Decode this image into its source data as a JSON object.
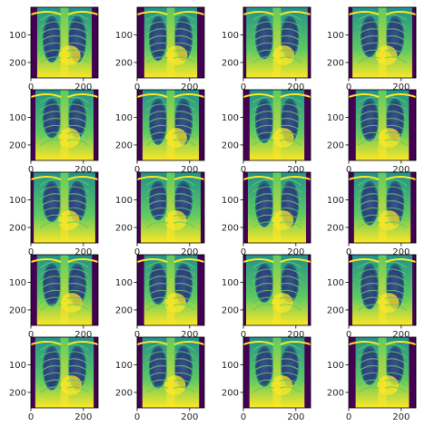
{
  "figure": {
    "grid_rows": 5,
    "grid_cols": 4,
    "background": "#ffffff",
    "colormap": [
      "#440154",
      "#3b528b",
      "#21918c",
      "#5ec962",
      "#fde725"
    ]
  },
  "chart_data": {
    "type": "heatmap",
    "description_source": "grid of 20 grayscale chest X-ray images rendered with viridis colormap",
    "image_size": [
      256,
      256
    ],
    "xlim": [
      0,
      256
    ],
    "ylim": [
      256,
      0
    ],
    "x_ticks": [
      "0",
      "200"
    ],
    "y_ticks": [
      "100",
      "200"
    ],
    "panels": [
      {
        "row": 0,
        "col": 0
      },
      {
        "row": 0,
        "col": 1
      },
      {
        "row": 0,
        "col": 2
      },
      {
        "row": 0,
        "col": 3
      },
      {
        "row": 1,
        "col": 0
      },
      {
        "row": 1,
        "col": 1
      },
      {
        "row": 1,
        "col": 2
      },
      {
        "row": 1,
        "col": 3
      },
      {
        "row": 2,
        "col": 0
      },
      {
        "row": 2,
        "col": 1
      },
      {
        "row": 2,
        "col": 2
      },
      {
        "row": 2,
        "col": 3
      },
      {
        "row": 3,
        "col": 0
      },
      {
        "row": 3,
        "col": 1
      },
      {
        "row": 3,
        "col": 2
      },
      {
        "row": 3,
        "col": 3
      },
      {
        "row": 4,
        "col": 0
      },
      {
        "row": 4,
        "col": 1
      },
      {
        "row": 4,
        "col": 2
      },
      {
        "row": 4,
        "col": 3
      }
    ]
  }
}
